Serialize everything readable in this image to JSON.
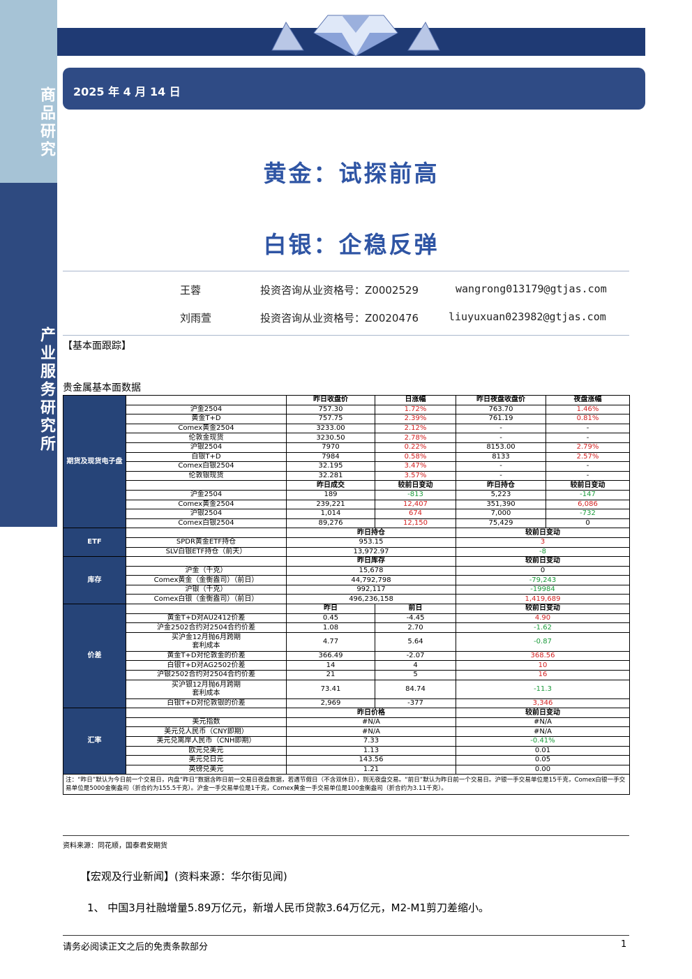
{
  "sidebar": {
    "top": "商品研究",
    "bottom": "产业服务研究所"
  },
  "header": {
    "date": "2025 年 4 月 14 日",
    "title_lines": [
      "黄金：试探前高",
      "白银：企稳反弹"
    ]
  },
  "authors": [
    {
      "name": "王蓉",
      "license": "投资咨询从业资格号：Z0002529",
      "email": "wangrong013179@gtjas.com"
    },
    {
      "name": "刘雨萱",
      "license": "投资咨询从业资格号：Z0020476",
      "email": "liuyuxuan023982@gtjas.com"
    }
  ],
  "section_label": "【基本面跟踪】",
  "table_title": "贵金属基本面数据",
  "table": {
    "sections": [
      {
        "name": "期货及现货电子盘",
        "blocks": [
          {
            "header": [
              "昨日收盘价",
              "日涨幅",
              "昨日夜盘收盘价",
              "夜盘涨幅"
            ],
            "spans": [
              1,
              1,
              1,
              1
            ],
            "colored": [
              1,
              3
            ],
            "positive_red": true,
            "rows": [
              {
                "label": "沪金2504",
                "cells": [
                  "757.30",
                  "1.72%",
                  "763.70",
                  "1.46%"
                ]
              },
              {
                "label": "黄金T+D",
                "cells": [
                  "757.75",
                  "2.39%",
                  "761.19",
                  "0.81%"
                ]
              },
              {
                "label": "Comex黄金2504",
                "cells": [
                  "3233.00",
                  "2.12%",
                  "-",
                  "-"
                ]
              },
              {
                "label": "伦敦金现货",
                "cells": [
                  "3230.50",
                  "2.78%",
                  "-",
                  "-"
                ]
              },
              {
                "label": "沪银2504",
                "cells": [
                  "7970",
                  "0.22%",
                  "8153.00",
                  "2.79%"
                ]
              },
              {
                "label": "白银T+D",
                "cells": [
                  "7984",
                  "0.58%",
                  "8133",
                  "2.57%"
                ]
              },
              {
                "label": "Comex白银2504",
                "cells": [
                  "32.195",
                  "3.47%",
                  "-",
                  "-"
                ]
              },
              {
                "label": "伦敦银现货",
                "cells": [
                  "32.281",
                  "3.57%",
                  "-",
                  "-"
                ]
              }
            ]
          },
          {
            "header": [
              "昨日成交",
              "较前日变动",
              "昨日持仓",
              "较前日变动"
            ],
            "spans": [
              1,
              1,
              1,
              1
            ],
            "colored": [
              1,
              3
            ],
            "positive_red": true,
            "rows": [
              {
                "label": "沪金2504",
                "cells": [
                  "189",
                  "-813",
                  "5,223",
                  "-147"
                ]
              },
              {
                "label": "Comex黄金2504",
                "cells": [
                  "239,221",
                  "12,407",
                  "351,390",
                  "6,086"
                ]
              },
              {
                "label": "沪银2504",
                "cells": [
                  "1,014",
                  "674",
                  "7,000",
                  "-732"
                ]
              },
              {
                "label": "Comex白银2504",
                "cells": [
                  "89,276",
                  "12,150",
                  "75,429",
                  "0"
                ]
              }
            ]
          }
        ]
      },
      {
        "name": "ETF",
        "blocks": [
          {
            "header": [
              "昨日持仓",
              "较前日变动"
            ],
            "spans": [
              2,
              2
            ],
            "colored": [
              1
            ],
            "positive_red": true,
            "rows": [
              {
                "label": "SPDR黄金ETF持仓",
                "cells": [
                  "953.15",
                  "3"
                ]
              },
              {
                "label": "SLV白银ETF持仓（前天）",
                "cells": [
                  "13,972.97",
                  "-8"
                ]
              }
            ]
          }
        ]
      },
      {
        "name": "库存",
        "blocks": [
          {
            "header": [
              "昨日库存",
              "较前日变动"
            ],
            "spans": [
              2,
              2
            ],
            "colored": [
              1
            ],
            "positive_red": true,
            "rows": [
              {
                "label": "沪金（千克）",
                "cells": [
                  "15,678",
                  "0"
                ]
              },
              {
                "label": "Comex黄金（金衡盎司）（前日）",
                "cells": [
                  "44,792,798",
                  "-79,243"
                ]
              },
              {
                "label": "沪银（千克）",
                "cells": [
                  "992,117",
                  "-19984"
                ]
              },
              {
                "label": "Comex白银（金衡盎司）（前日）",
                "cells": [
                  "496,236,158",
                  "1,419,689"
                ]
              }
            ]
          }
        ]
      },
      {
        "name": "价差",
        "blocks": [
          {
            "header": [
              "昨日",
              "前日",
              "较前日变动"
            ],
            "spans": [
              1,
              1,
              2
            ],
            "colored": [
              2
            ],
            "positive_red": true,
            "rows": [
              {
                "label": "黄金T+D对AU2412价差",
                "cells": [
                  "0.45",
                  "-4.45",
                  "4.90"
                ]
              },
              {
                "label": "沪金2502合约对2504合约价差",
                "cells": [
                  "1.08",
                  "2.70",
                  "-1.62"
                ]
              },
              {
                "label": "买沪金12月抛6月跨期\n套利成本",
                "cells": [
                  "4.77",
                  "5.64",
                  "-0.87"
                ]
              },
              {
                "label": "黄金T+D对伦敦金的价差",
                "cells": [
                  "366.49",
                  "-2.07",
                  "368.56"
                ]
              },
              {
                "label": "白银T+D对AG2502价差",
                "cells": [
                  "14",
                  "4",
                  "10"
                ]
              },
              {
                "label": "沪银2502合约对2504合约价差",
                "cells": [
                  "21",
                  "5",
                  "16"
                ]
              },
              {
                "label": "买沪银12月抛6月跨期\n套利成本",
                "cells": [
                  "73.41",
                  "84.74",
                  "-11.3"
                ]
              },
              {
                "label": "白银T+D对伦敦银的价差",
                "cells": [
                  "2,969",
                  "-377",
                  "3,346"
                ]
              }
            ]
          }
        ]
      },
      {
        "name": "汇率",
        "blocks": [
          {
            "header": [
              "昨日价格",
              "较前日变动"
            ],
            "spans": [
              2,
              2
            ],
            "colored": [
              1
            ],
            "positive_red": false,
            "rows": [
              {
                "label": "美元指数",
                "cells": [
                  "#N/A",
                  "#N/A"
                ]
              },
              {
                "label": "美元兑人民币（CNY即期）",
                "cells": [
                  "#N/A",
                  "#N/A"
                ]
              },
              {
                "label": "美元兑离岸人民币（CNH即期）",
                "cells": [
                  "7.33",
                  "-0.41%"
                ]
              },
              {
                "label": "欧元兑美元",
                "cells": [
                  "1.13",
                  "0.01"
                ]
              },
              {
                "label": "美元兑日元",
                "cells": [
                  "143.56",
                  "0.05"
                ]
              },
              {
                "label": "英镑兑美元",
                "cells": [
                  "1.21",
                  "0.00"
                ]
              }
            ]
          }
        ]
      }
    ],
    "note": "注：“昨日”默认为今日前一个交易日，内盘“昨日”数据含昨日前一交易日夜盘数据，若遇节假日（不含双休日），则无夜盘交易。“前日”默认为昨日前一个交易日。沪银一手交易单位是15千克，Comex白银一手交易单位是5000金衡盎司（折合约为155.5千克）。沪金一手交易单位是1千克，Comex黄金一手交易单位是100金衡盎司（折合约为3.11千克）。"
  },
  "source": "资料来源：同花顺，国泰君安期货",
  "news": {
    "heading": "【宏观及行业新闻】(资料来源：华尔街见闻)",
    "items": [
      "1、 中国3月社融增量5.89万亿元，新增人民币贷款3.64万亿元，M2-M1剪刀差缩小。"
    ]
  },
  "footer": {
    "disclaimer": "请务必阅读正文之后的免责条款部分",
    "page": "1"
  }
}
